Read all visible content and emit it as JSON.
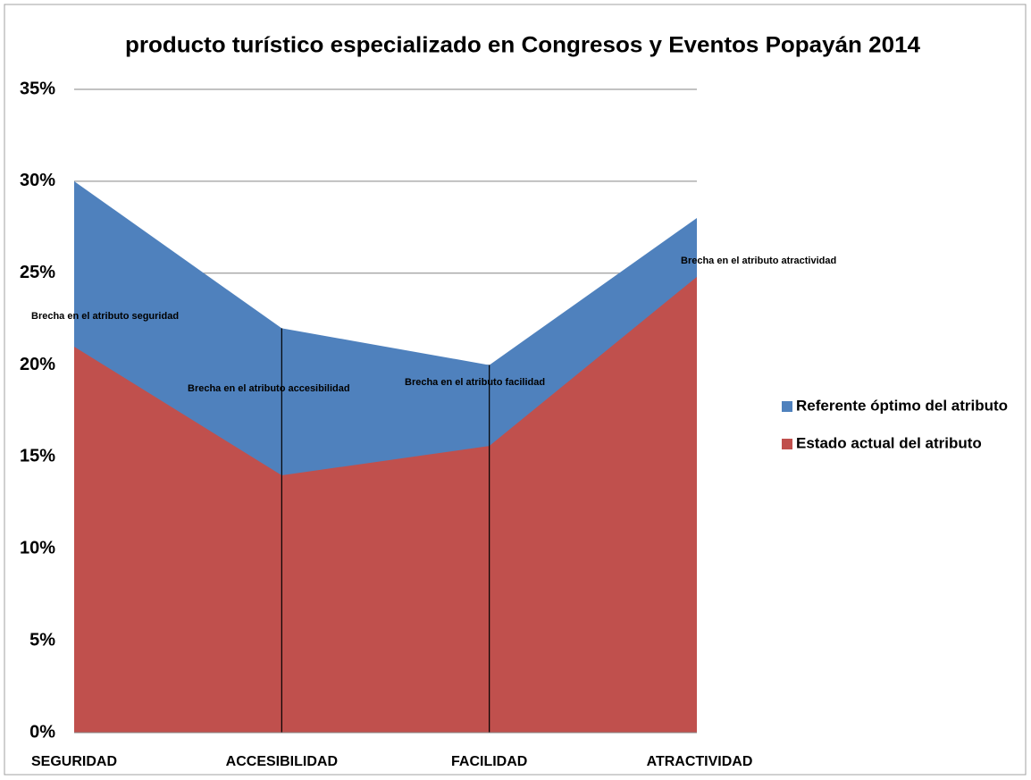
{
  "chart_data": {
    "type": "area",
    "title": "producto turístico especializado en Congresos y Eventos Popayán 2014",
    "categories": [
      "SEGURIDAD",
      "ACCESIBILIDAD",
      "FACILIDAD",
      "ATRACTIVIDAD"
    ],
    "series": [
      {
        "name": "Referente óptimo del atributo",
        "color": "#4f81bd",
        "values": [
          30,
          22,
          20,
          28
        ]
      },
      {
        "name": "Estado actual del atributo",
        "color": "#c0504d",
        "values": [
          21,
          14,
          15.6,
          24.8
        ]
      }
    ],
    "ylim": [
      0,
      35
    ],
    "yticks": [
      {
        "value": 0,
        "label": "0%"
      },
      {
        "value": 5,
        "label": "5%"
      },
      {
        "value": 10,
        "label": "10%"
      },
      {
        "value": 15,
        "label": "15%"
      },
      {
        "value": 20,
        "label": "20%"
      },
      {
        "value": 25,
        "label": "25%"
      },
      {
        "value": 30,
        "label": "30%"
      },
      {
        "value": 35,
        "label": "35%"
      }
    ],
    "grid": true,
    "legend": "right",
    "annotations": [
      "Brecha en el atributo seguridad",
      "Brecha en el atributo accesibilidad",
      "Brecha en el atributo facilidad",
      "Brecha en el atributo atractividad"
    ]
  }
}
